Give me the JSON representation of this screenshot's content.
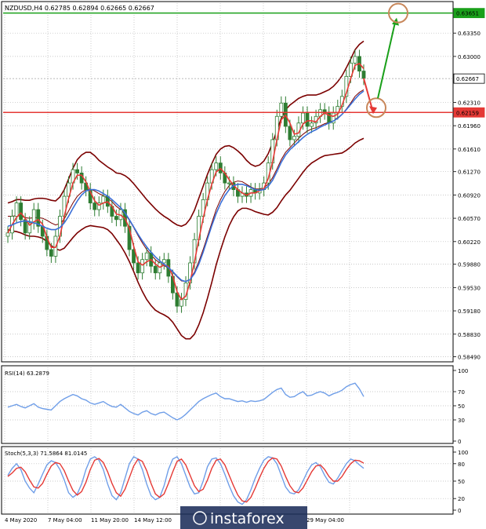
{
  "colors": {
    "candle": "#2e7d32",
    "bollinger": "#7b0000",
    "ma_fast": "#e53935",
    "ma_slow": "#3a6fd8",
    "resistance": "#1aa01a",
    "support": "#e53935",
    "rsi_line": "#6f9ee8",
    "stoch_main": "#6f9ee8",
    "stoch_signal": "#e53935",
    "target_circle": "#c8875a"
  },
  "chart_data": [
    {
      "type": "candlestick",
      "title": "NZDUSD,H4  0.62785  0.62894  0.62665  0.62667",
      "ylim": [
        0.5845,
        0.638
      ],
      "y_ticks": [
        "0.63350",
        "0.63000",
        "0.62310",
        "0.61960",
        "0.61610",
        "0.61270",
        "0.60920",
        "0.60570",
        "0.60220",
        "0.59880",
        "0.59530",
        "0.59180",
        "0.58830",
        "0.58490"
      ],
      "price_labels": [
        {
          "value": 0.63651,
          "text": "0.63651",
          "role": "resistance"
        },
        {
          "value": 0.62667,
          "text": "0.62667",
          "role": "last"
        },
        {
          "value": 0.62159,
          "text": "0.62159",
          "role": "support"
        }
      ],
      "x_tick_labels": [
        "4 May 2020",
        "7 May 04:00",
        "11 May 20:00",
        "14 May 12:00",
        "",
        "",
        "",
        "29 May 04:00"
      ],
      "close_series": [
        0.6035,
        0.606,
        0.608,
        0.6055,
        0.6035,
        0.605,
        0.607,
        0.6045,
        0.603,
        0.601,
        0.6,
        0.603,
        0.606,
        0.609,
        0.611,
        0.613,
        0.6125,
        0.611,
        0.61,
        0.608,
        0.607,
        0.608,
        0.609,
        0.6075,
        0.606,
        0.6055,
        0.607,
        0.6045,
        0.601,
        0.599,
        0.5975,
        0.5995,
        0.6005,
        0.5985,
        0.5975,
        0.599,
        0.5995,
        0.597,
        0.5945,
        0.5925,
        0.5935,
        0.596,
        0.599,
        0.6025,
        0.606,
        0.6085,
        0.611,
        0.613,
        0.614,
        0.6125,
        0.611,
        0.611,
        0.61,
        0.609,
        0.6095,
        0.609,
        0.61,
        0.6095,
        0.61,
        0.611,
        0.614,
        0.6175,
        0.621,
        0.623,
        0.6195,
        0.6175,
        0.618,
        0.62,
        0.6215,
        0.6195,
        0.62,
        0.621,
        0.622,
        0.6215,
        0.62,
        0.6215,
        0.6225,
        0.624,
        0.627,
        0.629,
        0.63,
        0.6278,
        0.6267
      ],
      "bollinger_mid": [
        0.606,
        0.606,
        0.6061,
        0.606,
        0.6058,
        0.6057,
        0.6058,
        0.6058,
        0.6057,
        0.6054,
        0.605,
        0.6047,
        0.6049,
        0.6056,
        0.6068,
        0.608,
        0.609,
        0.6096,
        0.61,
        0.6101,
        0.6098,
        0.6094,
        0.6091,
        0.6087,
        0.6082,
        0.6075,
        0.607,
        0.6063,
        0.6054,
        0.6043,
        0.6031,
        0.602,
        0.601,
        0.6002,
        0.5995,
        0.599,
        0.5986,
        0.5982,
        0.5976,
        0.5969,
        0.5963,
        0.5962,
        0.5966,
        0.5976,
        0.5992,
        0.601,
        0.603,
        0.605,
        0.607,
        0.6085,
        0.6097,
        0.6106,
        0.6111,
        0.6113,
        0.6112,
        0.6108,
        0.6104,
        0.6101,
        0.6101,
        0.6103,
        0.6108,
        0.6118,
        0.6131,
        0.6145,
        0.6156,
        0.6163,
        0.617,
        0.6177,
        0.6183,
        0.6188,
        0.6191,
        0.6193,
        0.6196,
        0.6199,
        0.6201,
        0.6204,
        0.6208,
        0.6213,
        0.6221,
        0.623,
        0.624,
        0.6246,
        0.625
      ],
      "bollinger_width": [
        0.002,
        0.0022,
        0.0024,
        0.0025,
        0.0026,
        0.0027,
        0.0028,
        0.0029,
        0.003,
        0.0032,
        0.0034,
        0.0036,
        0.004,
        0.0044,
        0.0048,
        0.0052,
        0.0055,
        0.0056,
        0.0056,
        0.0055,
        0.0053,
        0.005,
        0.0048,
        0.0047,
        0.0048,
        0.005,
        0.0054,
        0.0058,
        0.0062,
        0.0066,
        0.007,
        0.0073,
        0.0075,
        0.0076,
        0.0076,
        0.0075,
        0.0074,
        0.0074,
        0.0075,
        0.0078,
        0.0082,
        0.0086,
        0.009,
        0.0093,
        0.0095,
        0.0095,
        0.0093,
        0.0089,
        0.0083,
        0.0076,
        0.0068,
        0.006,
        0.0052,
        0.0045,
        0.004,
        0.0036,
        0.0034,
        0.0034,
        0.0036,
        0.004,
        0.0046,
        0.0052,
        0.0058,
        0.0062,
        0.0064,
        0.0064,
        0.0062,
        0.006,
        0.0057,
        0.0054,
        0.0051,
        0.0049,
        0.0048,
        0.0048,
        0.0049,
        0.0051,
        0.0054,
        0.0058,
        0.0062,
        0.0066,
        0.007,
        0.0072,
        0.0073
      ],
      "ma_slow": [
        0.6045,
        0.6047,
        0.605,
        0.6052,
        0.6053,
        0.6052,
        0.605,
        0.6048,
        0.6045,
        0.6042,
        0.604,
        0.604,
        0.6043,
        0.605,
        0.606,
        0.6072,
        0.6083,
        0.6092,
        0.6098,
        0.61,
        0.61,
        0.6098,
        0.6094,
        0.609,
        0.6085,
        0.6079,
        0.6073,
        0.6065,
        0.6055,
        0.6044,
        0.6033,
        0.6023,
        0.6014,
        0.6006,
        0.5999,
        0.5993,
        0.5988,
        0.5983,
        0.5977,
        0.597,
        0.5964,
        0.5962,
        0.5965,
        0.5974,
        0.5988,
        0.6006,
        0.6026,
        0.6046,
        0.6064,
        0.6079,
        0.6091,
        0.61,
        0.6106,
        0.6108,
        0.6108,
        0.6106,
        0.6103,
        0.61,
        0.6099,
        0.61,
        0.6105,
        0.6114,
        0.6127,
        0.6141,
        0.6152,
        0.616,
        0.6166,
        0.6172,
        0.6178,
        0.6183,
        0.6187,
        0.619,
        0.6194,
        0.6197,
        0.62,
        0.6203,
        0.6207,
        0.6213,
        0.622,
        0.6228,
        0.6236,
        0.6243,
        0.6248
      ],
      "resistance_level": 0.63651,
      "support_level": 0.62159
    },
    {
      "type": "line",
      "title": "RSI(14) 63.2879",
      "ylim": [
        0,
        100
      ],
      "y_ticks": [
        "100",
        "70",
        "50",
        "30",
        "0"
      ],
      "series": [
        {
          "values": [
            48,
            50,
            52,
            49,
            47,
            50,
            53,
            48,
            46,
            45,
            44,
            50,
            56,
            60,
            63,
            66,
            64,
            60,
            58,
            54,
            52,
            54,
            56,
            52,
            49,
            48,
            52,
            47,
            42,
            39,
            37,
            41,
            43,
            39,
            37,
            40,
            41,
            37,
            33,
            30,
            33,
            38,
            44,
            50,
            56,
            60,
            63,
            66,
            68,
            63,
            60,
            60,
            58,
            56,
            57,
            55,
            57,
            56,
            57,
            59,
            64,
            69,
            73,
            75,
            66,
            62,
            63,
            67,
            70,
            64,
            65,
            68,
            70,
            68,
            64,
            67,
            69,
            72,
            77,
            80,
            82,
            74,
            63
          ]
        }
      ]
    },
    {
      "type": "line",
      "title": "Stoch(5,3,3) 71.5864 81.0145",
      "ylim": [
        0,
        100
      ],
      "y_ticks": [
        "100",
        "80",
        "50",
        "20",
        "0"
      ],
      "series": [
        {
          "values": [
            60,
            72,
            80,
            70,
            50,
            38,
            30,
            45,
            62,
            78,
            85,
            82,
            70,
            52,
            30,
            22,
            28,
            45,
            70,
            88,
            92,
            86,
            70,
            45,
            25,
            18,
            30,
            55,
            80,
            92,
            88,
            70,
            45,
            25,
            18,
            22,
            42,
            70,
            88,
            92,
            80,
            60,
            40,
            28,
            30,
            50,
            75,
            88,
            90,
            80,
            62,
            42,
            25,
            14,
            10,
            18,
            35,
            55,
            72,
            86,
            92,
            90,
            80,
            60,
            40,
            30,
            28,
            35,
            50,
            66,
            78,
            82,
            75,
            60,
            48,
            45,
            55,
            68,
            80,
            88,
            85,
            78,
            72
          ]
        },
        {
          "values": [
            58,
            64,
            72,
            74,
            66,
            52,
            40,
            38,
            46,
            62,
            76,
            82,
            80,
            68,
            50,
            34,
            26,
            32,
            48,
            70,
            86,
            89,
            82,
            66,
            46,
            30,
            24,
            36,
            56,
            76,
            88,
            84,
            68,
            46,
            28,
            22,
            28,
            46,
            66,
            84,
            88,
            78,
            60,
            42,
            32,
            36,
            52,
            72,
            86,
            88,
            78,
            60,
            42,
            26,
            16,
            14,
            22,
            38,
            56,
            72,
            84,
            90,
            88,
            76,
            58,
            42,
            32,
            30,
            38,
            52,
            66,
            76,
            78,
            70,
            58,
            50,
            50,
            58,
            70,
            80,
            86,
            85,
            81
          ]
        }
      ]
    }
  ],
  "watermark": "instaforex"
}
